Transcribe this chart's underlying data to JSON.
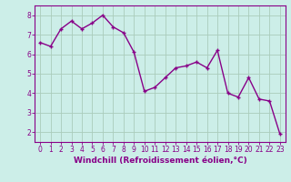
{
  "x": [
    0,
    1,
    2,
    3,
    4,
    5,
    6,
    7,
    8,
    9,
    10,
    11,
    12,
    13,
    14,
    15,
    16,
    17,
    18,
    19,
    20,
    21,
    22,
    23
  ],
  "y": [
    6.6,
    6.4,
    7.3,
    7.7,
    7.3,
    7.6,
    8.0,
    7.4,
    7.1,
    6.1,
    4.1,
    4.3,
    4.8,
    5.3,
    5.4,
    5.6,
    5.3,
    6.2,
    4.0,
    3.8,
    4.8,
    3.7,
    3.6,
    1.9
  ],
  "line_color": "#880088",
  "marker": "+",
  "bg_color": "#cceee8",
  "grid_color": "#aaccbb",
  "xlabel": "Windchill (Refroidissement éolien,°C)",
  "xlim": [
    -0.5,
    23.5
  ],
  "ylim": [
    1.5,
    8.5
  ],
  "yticks": [
    2,
    3,
    4,
    5,
    6,
    7,
    8
  ],
  "xticks": [
    0,
    1,
    2,
    3,
    4,
    5,
    6,
    7,
    8,
    9,
    10,
    11,
    12,
    13,
    14,
    15,
    16,
    17,
    18,
    19,
    20,
    21,
    22,
    23
  ],
  "tick_label_fontsize": 5.5,
  "xlabel_fontsize": 6.5,
  "axis_color": "#880088",
  "marker_size": 3,
  "marker_edge_width": 1.0,
  "line_width": 1.0
}
